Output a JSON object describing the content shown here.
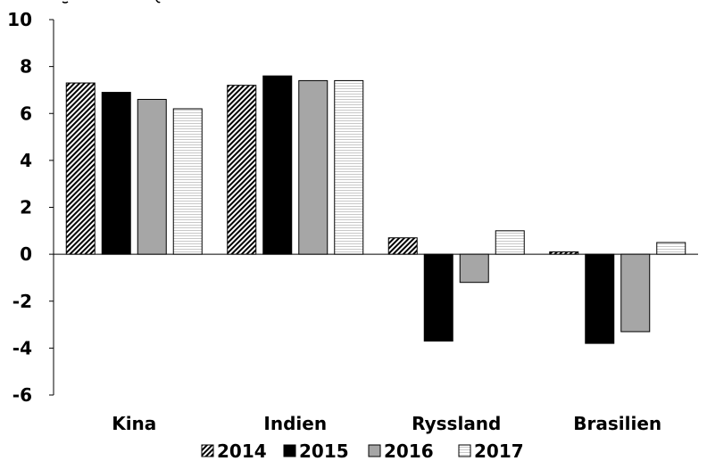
{
  "chart_data": {
    "type": "bar",
    "title": "",
    "xlabel": "",
    "ylabel": "",
    "categories": [
      "Kina",
      "Indien",
      "Ryssland",
      "Brasilien"
    ],
    "series": [
      {
        "name": "2014",
        "values": [
          7.3,
          7.2,
          0.7,
          0.1
        ],
        "pattern": "diagonal-hatch"
      },
      {
        "name": "2015",
        "values": [
          6.9,
          7.6,
          -3.7,
          -3.8
        ],
        "pattern": "solid-black"
      },
      {
        "name": "2016",
        "values": [
          6.6,
          7.4,
          -1.2,
          -3.3
        ],
        "pattern": "solid-gray"
      },
      {
        "name": "2017",
        "values": [
          6.2,
          7.4,
          1.0,
          0.5
        ],
        "pattern": "horizontal-lines"
      }
    ],
    "ylim": [
      -6,
      10
    ],
    "yticks": [
      "10",
      "8",
      "6",
      "4",
      "2",
      "0",
      "-2",
      "-4",
      "-6"
    ],
    "grid": false,
    "legend_position": "bottom"
  },
  "colors": {
    "solid_black": "#000000",
    "solid_gray": "#a6a6a6",
    "hatch_line": "#000000",
    "hline": "#c8c8c8",
    "axis": "#000000"
  }
}
